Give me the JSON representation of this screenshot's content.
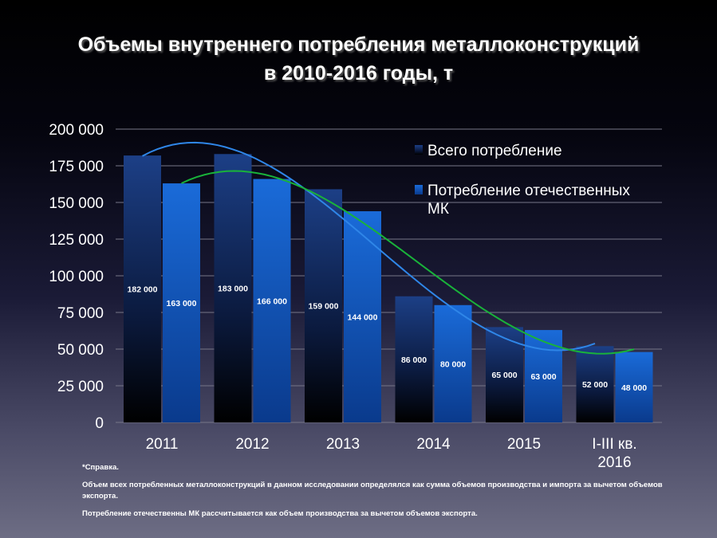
{
  "title": {
    "line1": "Объемы внутреннего потребления металлоконструкций",
    "line2": "в 2010-2016 годы, т"
  },
  "chart_data": {
    "type": "bar",
    "title": "Объемы внутреннего потребления металлоконструкций в 2010-2016 годы, т",
    "categories": [
      "2011",
      "2012",
      "2013",
      "2014",
      "2015",
      "I-III кв. 2016"
    ],
    "category_lines": [
      [
        "2011"
      ],
      [
        "2012"
      ],
      [
        "2013"
      ],
      [
        "2014"
      ],
      [
        "2015"
      ],
      [
        "I-III кв.",
        "2016"
      ]
    ],
    "series": [
      {
        "name": "Всего потребление",
        "values": [
          182000,
          183000,
          159000,
          86000,
          65000,
          52000
        ],
        "labels": [
          "182 000",
          "183 000",
          "159 000",
          "86 000",
          "65 000",
          "52 000"
        ],
        "color_top": "#1c3f86",
        "color_bottom": "#000000"
      },
      {
        "name": "Потребление отечественных МК",
        "legend_lines": [
          "Потребление отечественных",
          "МК"
        ],
        "values": [
          163000,
          166000,
          144000,
          80000,
          63000,
          48000
        ],
        "labels": [
          "163 000",
          "166 000",
          "144 000",
          "80 000",
          "63 000",
          "48 000"
        ],
        "color_top": "#1a6bd9",
        "color_bottom": "#0a3a8c"
      }
    ],
    "trendlines": [
      {
        "series": "Всего потребление",
        "color": "#2f86e8"
      },
      {
        "series": "Потребление отечественных МК",
        "color": "#19b33a"
      }
    ],
    "yticks": [
      "0",
      "25 000",
      "50 000",
      "75 000",
      "100 000",
      "125 000",
      "150 000",
      "175 000",
      "200 000"
    ],
    "ylim": [
      0,
      200000
    ],
    "grid": true,
    "legend": "top-right"
  },
  "notes": {
    "ref": "*Справка.",
    "note1": "Объем всех потребленных металлоконструкций в данном исследовании определялся как сумма объемов производства и импорта за вычетом объемов экспорта.",
    "note2": "Потребление отечественны МК рассчитывается как объем производства за вычетом объемов экспорта."
  }
}
